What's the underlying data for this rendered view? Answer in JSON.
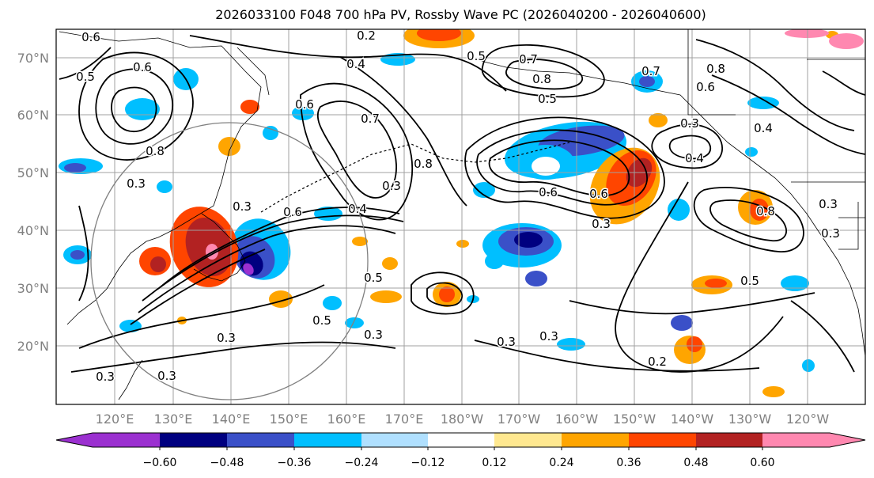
{
  "title": "2026033100 F048 700 hPa PV, Rossby Wave PC (2026040200 - 2026040600)",
  "latitude_labels": [
    "70°N",
    "60°N",
    "50°N",
    "40°N",
    "30°N",
    "20°N"
  ],
  "longitude_labels": [
    "120°E",
    "130°E",
    "140°E",
    "150°E",
    "160°E",
    "170°E",
    "180°W",
    "170°W",
    "160°W",
    "150°W",
    "140°W",
    "130°W",
    "120°W"
  ],
  "colorbar": {
    "tick_labels": [
      "−0.60",
      "−0.48",
      "−0.36",
      "−0.24",
      "−0.12",
      "0.12",
      "0.24",
      "0.36",
      "0.48",
      "0.60"
    ],
    "colors": [
      "#9b30d0",
      "#000080",
      "#3a50c8",
      "#00bfff",
      "#b0e0ff",
      "#ffffff",
      "#ffe890",
      "#ffa500",
      "#ff4500",
      "#b22222",
      "#ff88b0"
    ]
  },
  "contour_labels": [
    "0.2",
    "0.6",
    "0.5",
    "0.6",
    "0.4",
    "0.5",
    "0.7",
    "0.8",
    "0.7",
    "0.6",
    "0.5",
    "0.8",
    "0.6",
    "0.3",
    "0.8",
    "0.3",
    "0.4",
    "0.4",
    "0.6",
    "0.7",
    "0.8",
    "0.3",
    "0.5",
    "0.6",
    "0.3",
    "0.6",
    "0.4",
    "0.8",
    "0.3",
    "0.3",
    "0.3",
    "0.3",
    "0.3",
    "0.5",
    "0.3",
    "0.3",
    "0.2",
    "0.3",
    "0.5",
    "0.3"
  ],
  "colors": {
    "frame": "#000000",
    "grid": "#a0a0a0",
    "axis_label": "#808080",
    "circle": "#808080"
  }
}
